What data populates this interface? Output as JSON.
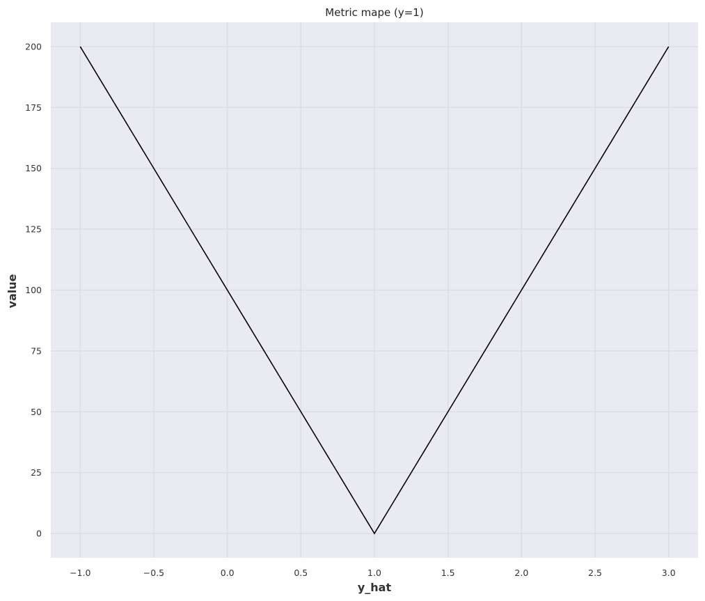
{
  "chart_data": {
    "type": "line",
    "title": "Metric mape (y=1)",
    "xlabel": "y_hat",
    "ylabel": "value",
    "xlim": [
      -1.2,
      3.2
    ],
    "ylim": [
      -10,
      210
    ],
    "xticks": [
      -1.0,
      -0.5,
      0.0,
      0.5,
      1.0,
      1.5,
      2.0,
      2.5,
      3.0
    ],
    "xtick_labels": [
      "−1.0",
      "−0.5",
      "0.0",
      "0.5",
      "1.0",
      "1.5",
      "2.0",
      "2.5",
      "3.0"
    ],
    "yticks": [
      0,
      25,
      50,
      75,
      100,
      125,
      150,
      175,
      200
    ],
    "ytick_labels": [
      "0",
      "25",
      "50",
      "75",
      "100",
      "125",
      "150",
      "175",
      "200"
    ],
    "grid": true,
    "background": "#eaeaf2",
    "line_color": "#000000",
    "series": [
      {
        "x": [
          -1.0,
          1.0,
          3.0
        ],
        "y": [
          200,
          0,
          200
        ]
      }
    ]
  }
}
